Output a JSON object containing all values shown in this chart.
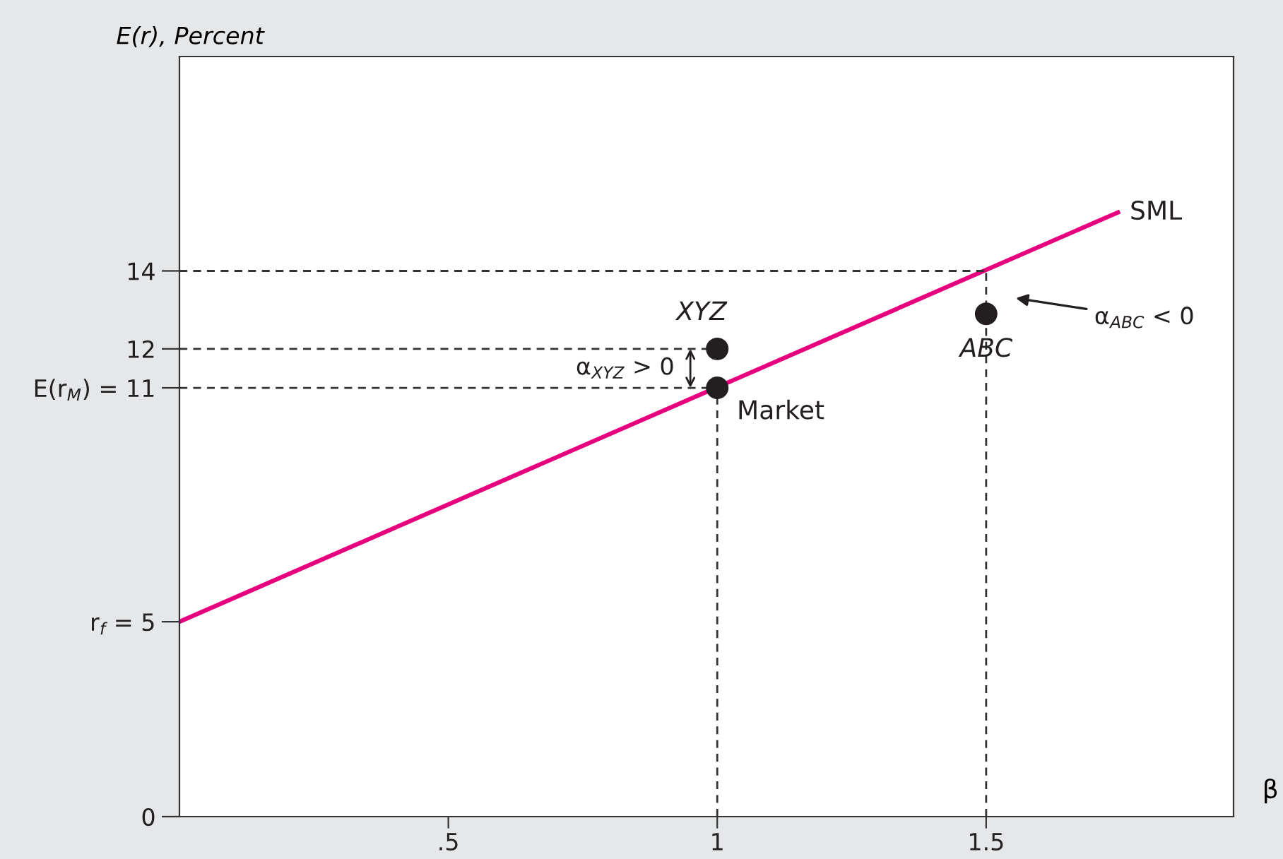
{
  "chart_data": {
    "type": "line",
    "xlabel": "β",
    "ylabel": "E(r), Percent",
    "xlim": [
      0,
      1.96
    ],
    "ylim": [
      0,
      19.5
    ],
    "xticks": [
      {
        "value": 0.5,
        "label": ".5"
      },
      1,
      1.5
    ],
    "yticks": [
      0,
      {
        "value": 5,
        "label": "r$_{f}$ = 5"
      },
      {
        "value": 11,
        "label": "E(r$_{M}$) = 11"
      },
      12,
      14
    ],
    "grid": false,
    "legend": false,
    "series": [
      {
        "color": "#e6007e",
        "line_style": "solid",
        "x": [
          0,
          1.745
        ],
        "values": [
          5,
          15.5
        ]
      },
      {
        "type": "line",
        "color": "#333333",
        "line_style": "dashed",
        "x": [
          0,
          1.5
        ],
        "values": [
          14,
          14
        ]
      },
      {
        "type": "line",
        "color": "#333333",
        "line_style": "dashed",
        "x": [
          0,
          1
        ],
        "values": [
          12,
          12
        ]
      },
      {
        "type": "line",
        "color": "#333333",
        "line_style": "dashed",
        "x": [
          0,
          1
        ],
        "values": [
          11,
          11
        ]
      },
      {
        "type": "line",
        "color": "#333333",
        "line_style": "dashed",
        "x": [
          1,
          1
        ],
        "values": [
          0,
          11
        ]
      },
      {
        "type": "line",
        "color": "#333333",
        "line_style": "dashed",
        "x": [
          1.5,
          1.5
        ],
        "values": [
          0,
          14
        ]
      },
      {
        "type": "scatter",
        "color": "#231f20",
        "marker": "circle",
        "x": [
          1,
          1,
          1.5
        ],
        "values": [
          11,
          12,
          12.9
        ]
      }
    ],
    "annotations": [
      {
        "text": "SML",
        "x": 1.745,
        "y": 15.5
      },
      {
        "text": "XYZ",
        "x": 1,
        "y": 12
      },
      {
        "text": "Market",
        "x": 1,
        "y": 11
      },
      {
        "text": "ABC",
        "x": 1.5,
        "y": 12.9
      },
      "α$_{XYZ}$ > 0",
      "α$_{ABC}$ < 0"
    ]
  }
}
